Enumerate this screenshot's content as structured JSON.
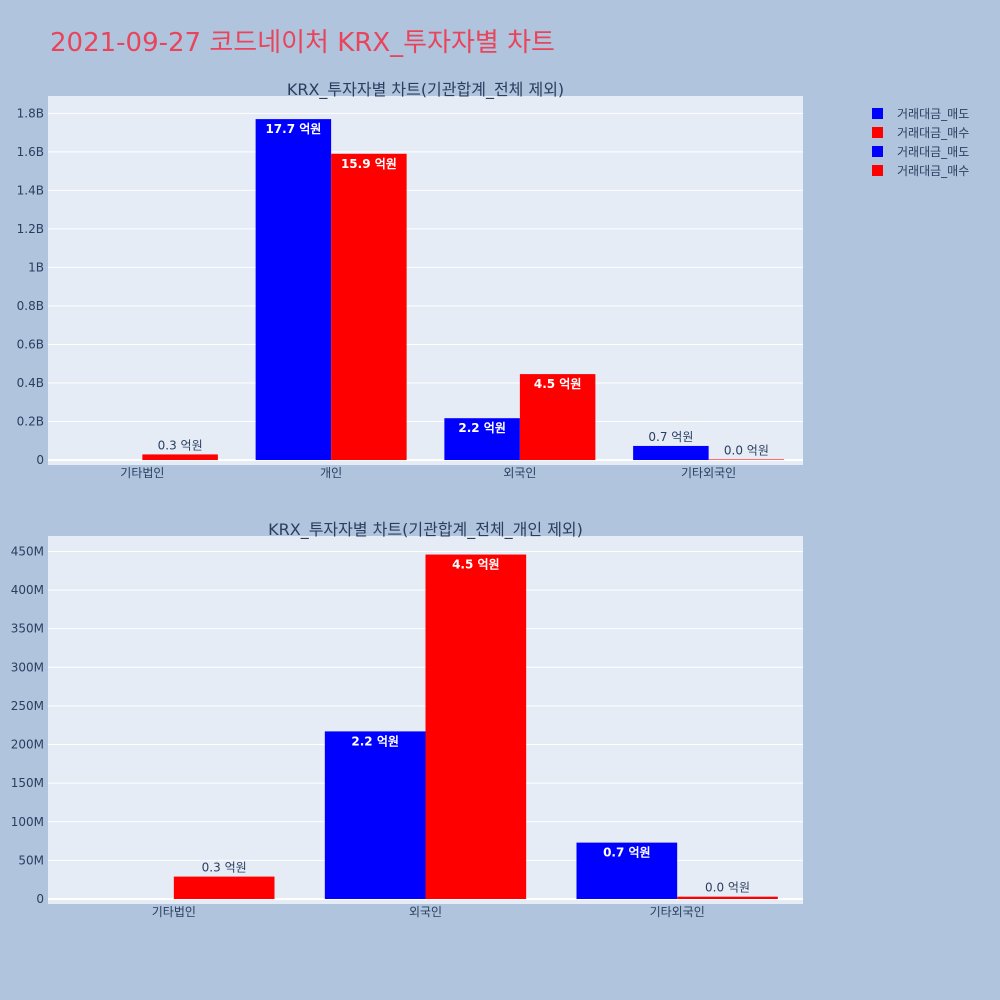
{
  "page_title": "2021-09-27 코드네이처 KRX_투자자별 차트",
  "colors": {
    "sell": "#0000ff",
    "buy": "#ff0000",
    "plot_bg": "#e5ecf6",
    "page_bg": "#b0c4de",
    "title": "#e8455c"
  },
  "legend": [
    {
      "label": "거래대금_매도",
      "color": "#0000ff"
    },
    {
      "label": "거래대금_매수",
      "color": "#ff0000"
    },
    {
      "label": "거래대금_매도",
      "color": "#0000ff"
    },
    {
      "label": "거래대금_매수",
      "color": "#ff0000"
    }
  ],
  "chart_data": [
    {
      "type": "bar",
      "title": "KRX_투자자별 차트(기관합계_전체 제외)",
      "categories": [
        "기타법인",
        "개인",
        "외국인",
        "기타외국인"
      ],
      "series": [
        {
          "name": "거래대금_매도",
          "values": [
            0,
            1770000000,
            217000000,
            73000000
          ],
          "labels": [
            "",
            "17.7 억원",
            "2.2 억원",
            "0.7 억원"
          ]
        },
        {
          "name": "거래대금_매수",
          "values": [
            29000000,
            1590000000,
            446000000,
            3000000
          ],
          "labels": [
            "0.3 억원",
            "15.9 억원",
            "4.5 억원",
            "0.0 억원"
          ]
        }
      ],
      "ylim": [
        0,
        1890000000
      ],
      "yticks": [
        0,
        200000000,
        400000000,
        600000000,
        800000000,
        1000000000,
        1200000000,
        1400000000,
        1600000000,
        1800000000
      ],
      "ytick_labels": [
        "0",
        "0.2B",
        "0.4B",
        "0.6B",
        "0.8B",
        "1B",
        "1.2B",
        "1.4B",
        "1.6B",
        "1.8B"
      ],
      "grid": true,
      "legend_position": "top-right"
    },
    {
      "type": "bar",
      "title": "KRX_투자자별 차트(기관합계_전체_개인 제외)",
      "categories": [
        "기타법인",
        "외국인",
        "기타외국인"
      ],
      "series": [
        {
          "name": "거래대금_매도",
          "values": [
            0,
            217000000,
            73000000
          ],
          "labels": [
            "",
            "2.2 억원",
            "0.7 억원"
          ]
        },
        {
          "name": "거래대금_매수",
          "values": [
            29000000,
            446000000,
            3000000
          ],
          "labels": [
            "0.3 억원",
            "4.5 억원",
            "0.0 억원"
          ]
        }
      ],
      "ylim": [
        0,
        470000000
      ],
      "yticks": [
        0,
        50000000,
        100000000,
        150000000,
        200000000,
        250000000,
        300000000,
        350000000,
        400000000,
        450000000
      ],
      "ytick_labels": [
        "0",
        "50M",
        "100M",
        "150M",
        "200M",
        "250M",
        "300M",
        "350M",
        "400M",
        "450M"
      ],
      "grid": true
    }
  ]
}
